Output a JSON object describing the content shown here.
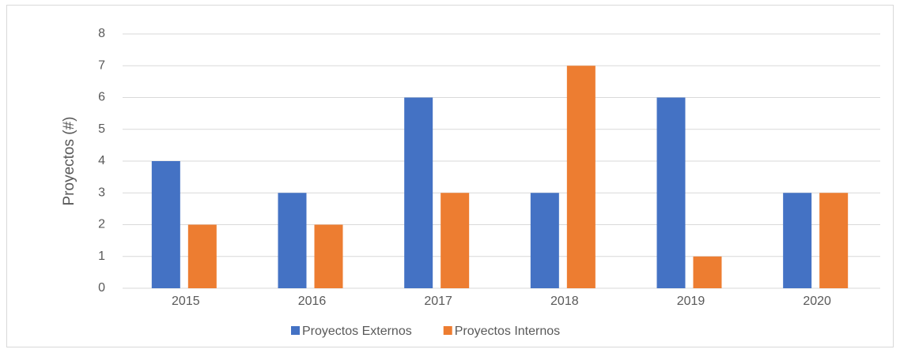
{
  "chart_data": {
    "type": "bar",
    "ylabel": "Proyectos (#)",
    "categories": [
      "2015",
      "2016",
      "2017",
      "2018",
      "2019",
      "2020"
    ],
    "series": [
      {
        "name": "Proyectos Externos",
        "color": "#4472c4",
        "values": [
          4,
          3,
          6,
          3,
          6,
          3
        ]
      },
      {
        "name": "Proyectos Internos",
        "color": "#ed7d31",
        "values": [
          2,
          2,
          3,
          7,
          1,
          3
        ]
      }
    ],
    "ylim": [
      0,
      8
    ],
    "yticks": [
      0,
      1,
      2,
      3,
      4,
      5,
      6,
      7,
      8
    ],
    "grid": true,
    "legend": "bottom"
  }
}
